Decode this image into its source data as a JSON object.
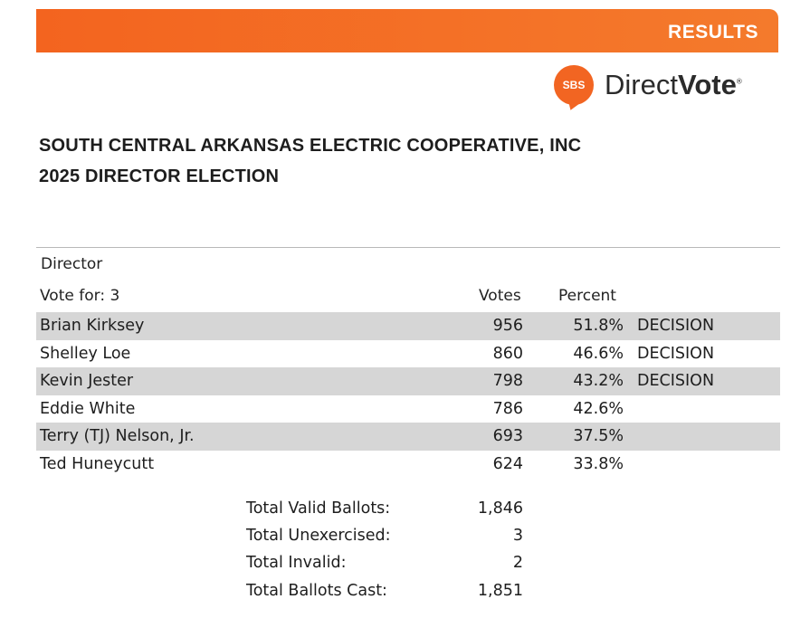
{
  "banner": {
    "label": "RESULTS",
    "color": "#f3641f"
  },
  "logo": {
    "badge": "SBS",
    "word1": "Direct",
    "word2": "Vote",
    "mark": "®",
    "color": "#f26522"
  },
  "title": {
    "line1": "SOUTH CENTRAL ARKANSAS ELECTRIC COOPERATIVE, INC",
    "line2": "2025 DIRECTOR ELECTION"
  },
  "race": {
    "name": "Director",
    "vote_for": "Vote for: 3",
    "col_votes": "Votes",
    "col_percent": "Percent",
    "candidates": [
      {
        "name": "Brian Kirksey",
        "votes": "956",
        "percent": "51.8%",
        "status": "DECISION"
      },
      {
        "name": "Shelley Loe",
        "votes": "860",
        "percent": "46.6%",
        "status": "DECISION"
      },
      {
        "name": "Kevin Jester",
        "votes": "798",
        "percent": "43.2%",
        "status": "DECISION"
      },
      {
        "name": "Eddie White",
        "votes": "786",
        "percent": "42.6%",
        "status": ""
      },
      {
        "name": "Terry (TJ) Nelson, Jr.",
        "votes": "693",
        "percent": "37.5%",
        "status": ""
      },
      {
        "name": "Ted Huneycutt",
        "votes": "624",
        "percent": "33.8%",
        "status": ""
      }
    ]
  },
  "totals": [
    {
      "label": "Total Valid Ballots:",
      "value": "1,846"
    },
    {
      "label": "Total Unexercised:",
      "value": "3"
    },
    {
      "label": "Total Invalid:",
      "value": "2"
    },
    {
      "label": "Total Ballots Cast:",
      "value": "1,851"
    }
  ]
}
